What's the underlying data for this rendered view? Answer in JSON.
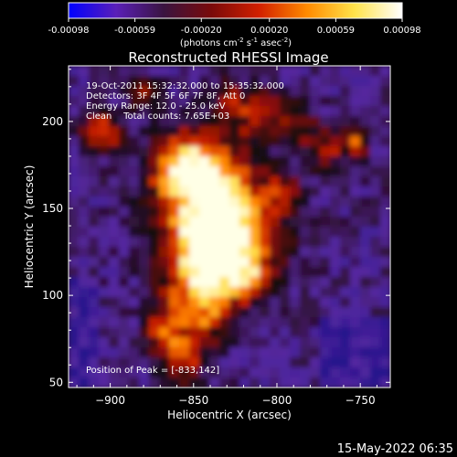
{
  "colorbar": {
    "ticks": [
      "-0.00098",
      "-0.00059",
      "-0.00020",
      "0.00020",
      "0.00059",
      "0.00098"
    ],
    "tick_values": [
      -0.00098,
      -0.00059,
      -0.0002,
      0.0002,
      0.00059,
      0.00098
    ],
    "units_text": "(photons cm",
    "units_exp1": "-2",
    "units_mid": " s",
    "units_exp2": "-1",
    "units_end": " asec",
    "units_exp3": "-2",
    "units_close": ")",
    "colors": [
      "#0000ff",
      "#5a1fb8",
      "#3a1440",
      "#7a0a0a",
      "#d22000",
      "#ff8a00",
      "#ffe34a",
      "#ffffff"
    ]
  },
  "chart_data": {
    "type": "heatmap",
    "title": "Reconstructed RHESSI Image",
    "xlabel": "Heliocentric X (arcsec)",
    "ylabel": "Heliocentric Y (arcsec)",
    "xlim": [
      -925,
      -732
    ],
    "ylim": [
      47,
      232
    ],
    "xticks": [
      -900,
      -850,
      -800,
      -750
    ],
    "xtick_labels": [
      "−900",
      "−850",
      "−800",
      "−750"
    ],
    "yticks": [
      50,
      100,
      150,
      200
    ],
    "ytick_labels": [
      "50",
      "100",
      "150",
      "200"
    ],
    "peak": [
      -833,
      142
    ],
    "annotations": {
      "time": "19-Oct-2011 15:32:32.000 to 15:35:32.000",
      "detectors": "Detectors: 3F 4F 5F 6F 7F 8F, Att 0",
      "energy": "Energy Range: 12.0 - 25.0 keV",
      "clean": "Clean    Total counts: 7.65E+03",
      "peak_label": "Position of Peak = [-833,142]"
    }
  },
  "footer": {
    "date": "15-May-2022 06:35"
  }
}
